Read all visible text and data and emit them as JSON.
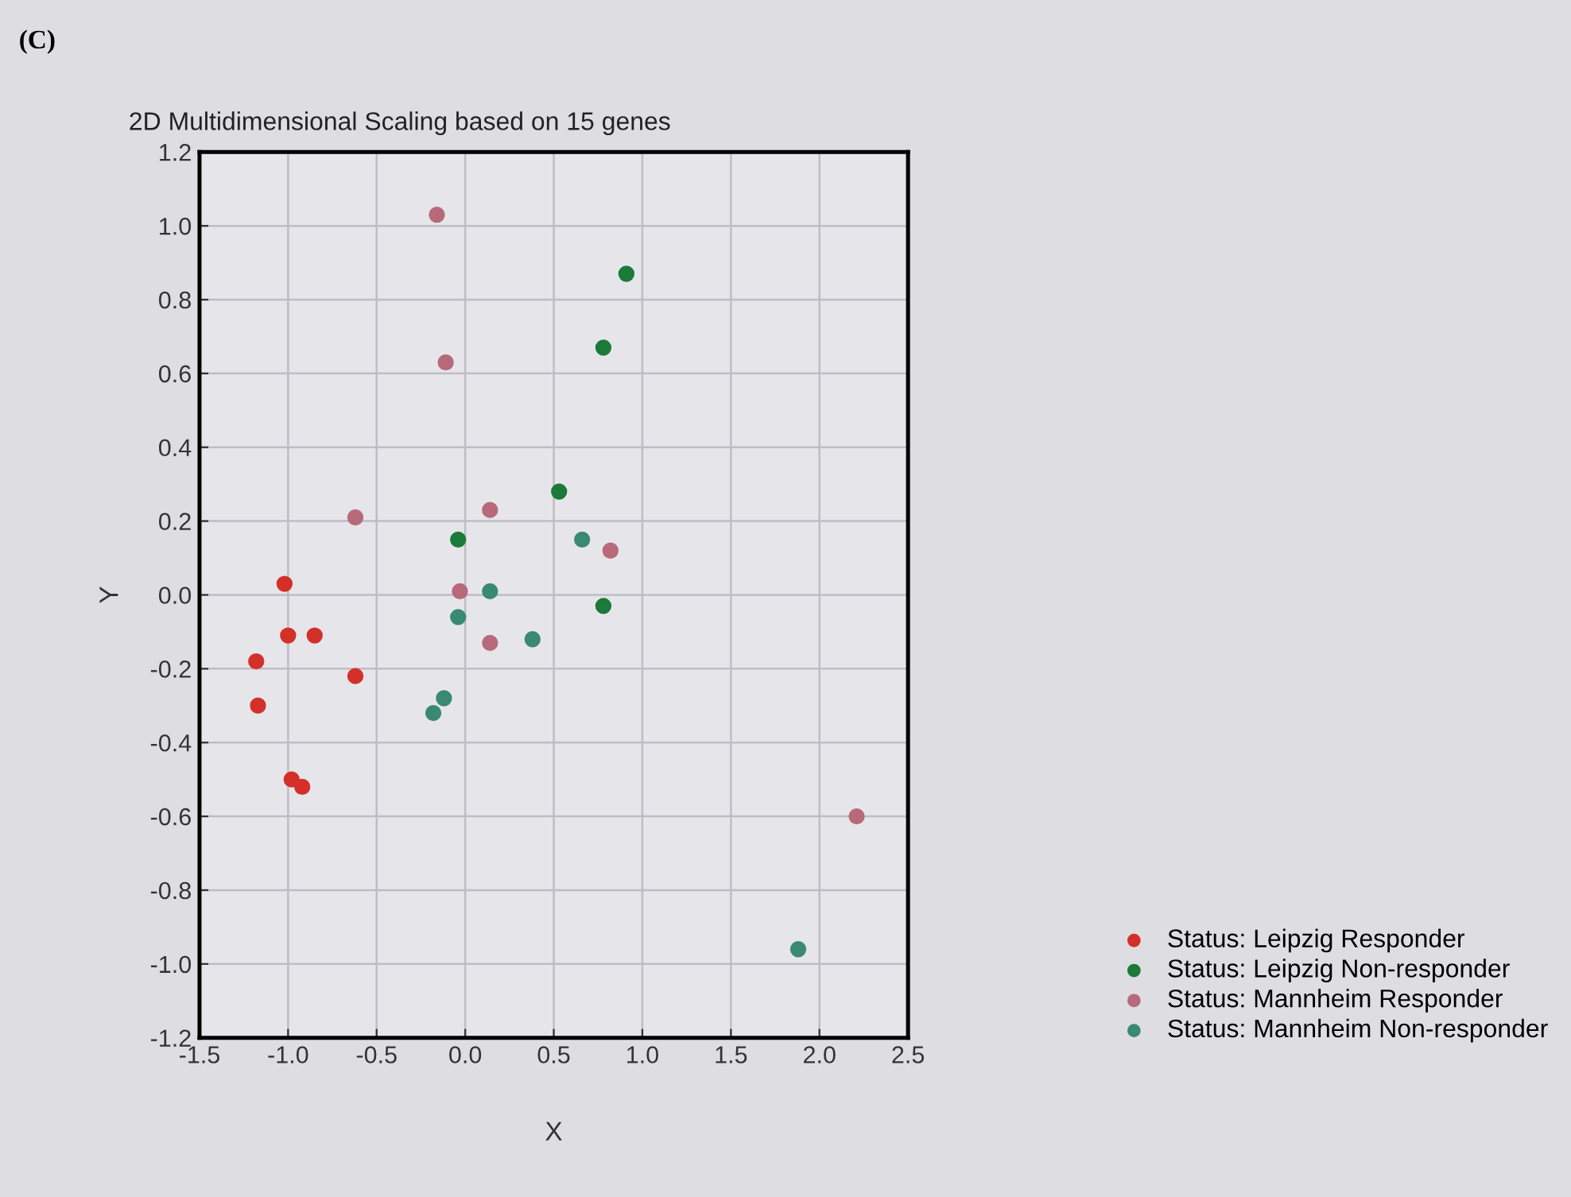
{
  "chart_data": {
    "type": "scatter",
    "title": "2D Multidimensional Scaling based on 15 genes",
    "xlabel": "X",
    "ylabel": "Y",
    "annotations": [
      "(C)"
    ],
    "xlim": [
      -1.5,
      2.5
    ],
    "ylim": [
      -1.2,
      1.2
    ],
    "xticks": [
      -1.5,
      {
        "value": -1,
        "label": "-1.0"
      },
      -0.5,
      {
        "value": 0,
        "label": "0.0"
      },
      0.5,
      {
        "value": 1,
        "label": "1.0"
      },
      1.5,
      {
        "value": 2,
        "label": "2.0"
      },
      2.5
    ],
    "yticks": [
      -1.2,
      {
        "value": -1,
        "label": "-1.0"
      },
      -0.8,
      -0.6,
      -0.4,
      -0.2,
      {
        "value": 0,
        "label": "0.0"
      },
      0.2,
      0.4,
      0.6,
      0.8,
      {
        "value": 1,
        "label": "1.0"
      },
      1.2
    ],
    "grid": true,
    "legend": "bottom right",
    "marker": "circle",
    "series": [
      {
        "name": "Status: Leipzig Responder",
        "color": "#d4302a",
        "x": [
          -1.02,
          -1.0,
          -0.85,
          -1.18,
          -0.62,
          -1.17,
          -0.98,
          -0.92
        ],
        "values": [
          0.03,
          -0.11,
          -0.11,
          -0.18,
          -0.22,
          -0.3,
          -0.5,
          -0.52
        ]
      },
      {
        "name": "Status: Leipzig Non-responder",
        "color": "#1c7a3a",
        "x": [
          0.91,
          0.78,
          0.53,
          -0.04,
          0.78
        ],
        "values": [
          0.87,
          0.67,
          0.28,
          0.15,
          -0.03
        ]
      },
      {
        "name": "Status: Mannheim Responder",
        "color": "#b86a7a",
        "x": [
          -0.16,
          -0.11,
          -0.62,
          0.14,
          0.82,
          -0.03,
          0.14,
          2.21
        ],
        "values": [
          1.03,
          0.63,
          0.21,
          0.23,
          0.12,
          0.01,
          -0.13,
          -0.6
        ]
      },
      {
        "name": "Status: Mannheim Non-responder",
        "color": "#3a8a70",
        "x": [
          0.66,
          0.14,
          -0.04,
          0.38,
          -0.12,
          -0.18,
          1.88
        ],
        "values": [
          0.15,
          0.01,
          -0.06,
          -0.12,
          -0.28,
          -0.32,
          -0.96
        ]
      }
    ]
  }
}
